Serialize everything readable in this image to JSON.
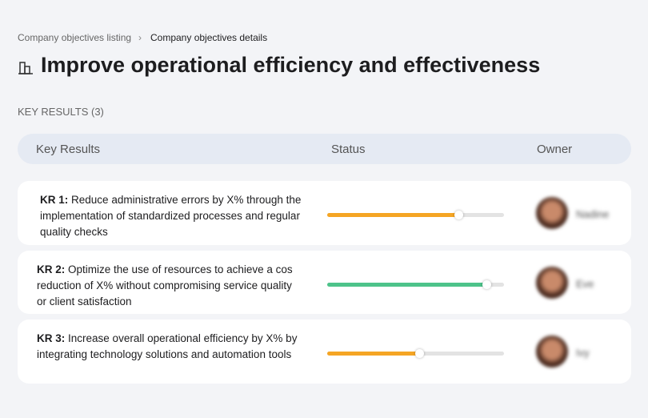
{
  "breadcrumb": {
    "parent": "Company objectives listing",
    "current": "Company objectives details"
  },
  "title": "Improve operational efficiency and effectiveness",
  "section_label": "KEY RESULTS (3)",
  "table": {
    "columns": [
      "Key Results",
      "Status",
      "Owner"
    ],
    "rows": [
      {
        "label": "KR 1:",
        "text": "Reduce administrative errors by X% through the implementation of standardized processes and regular quality checks",
        "progress": 74,
        "color": "#f5a524",
        "owner": "Nadine"
      },
      {
        "label": "KR 2:",
        "text": "Optimize the use of resources to achieve a cos reduction of X% without compromising service quality or client satisfaction",
        "progress": 90,
        "color": "#4dc38a",
        "owner": "Eve"
      },
      {
        "label": "KR 3:",
        "text": "Increase overall operational efficiency by X% by integrating technology solutions and automation tools",
        "progress": 52,
        "color": "#f5a524",
        "owner": "Ivy"
      }
    ]
  }
}
